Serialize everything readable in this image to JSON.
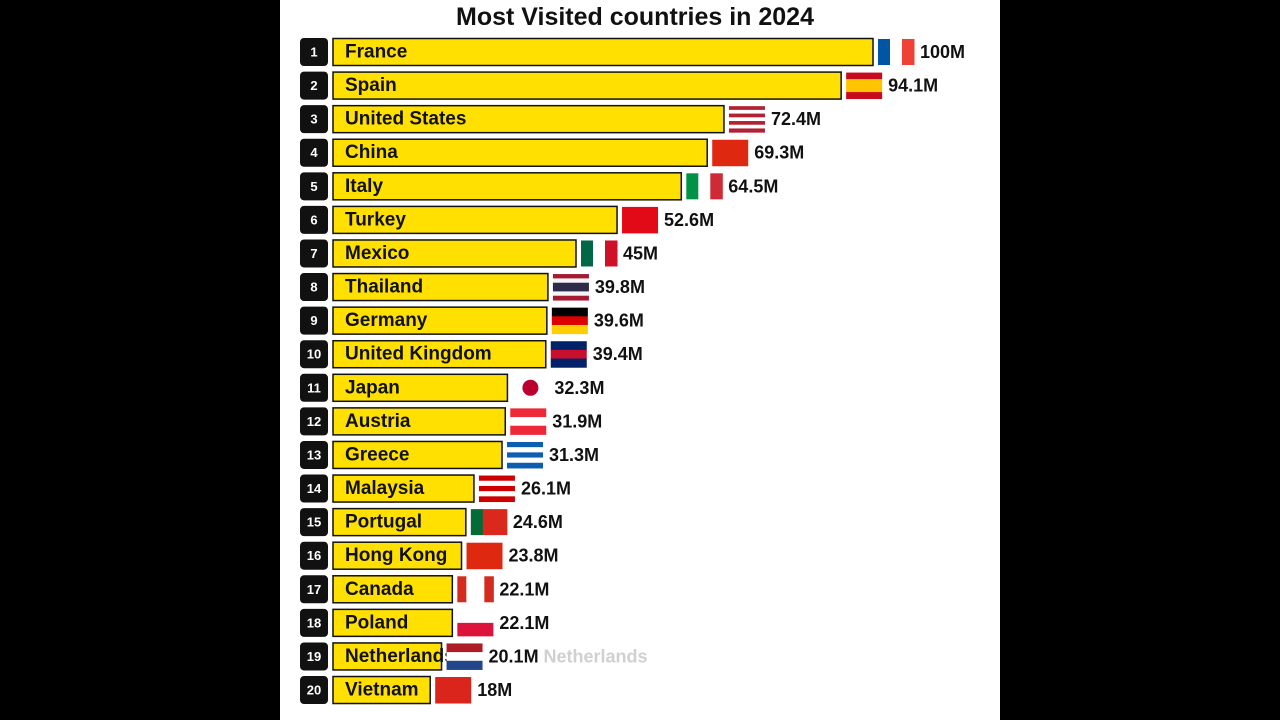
{
  "chart_data": {
    "type": "bar",
    "orientation": "horizontal",
    "title": "Most Visited countries in 2024",
    "annotation": "Netherlands",
    "ranks": [
      1,
      2,
      3,
      4,
      5,
      6,
      7,
      8,
      9,
      10,
      11,
      12,
      13,
      14,
      15,
      16,
      17,
      18,
      19,
      20
    ],
    "categories": [
      "France",
      "Spain",
      "United States",
      "China",
      "Italy",
      "Turkey",
      "Mexico",
      "Thailand",
      "Germany",
      "United Kingdom",
      "Japan",
      "Austria",
      "Greece",
      "Malaysia",
      "Portugal",
      "Hong Kong",
      "Canada",
      "Poland",
      "Netherlands",
      "Vietnam"
    ],
    "values": [
      100,
      94.1,
      72.4,
      69.3,
      64.5,
      52.6,
      45,
      39.8,
      39.6,
      39.4,
      32.3,
      31.9,
      31.3,
      26.1,
      24.6,
      23.8,
      22.1,
      22.1,
      20.1,
      18
    ],
    "value_labels": [
      "100M",
      "94.1M",
      "72.4M",
      "69.3M",
      "64.5M",
      "52.6M",
      "45M",
      "39.8M",
      "39.6M",
      "39.4M",
      "32.3M",
      "31.9M",
      "31.3M",
      "26.1M",
      "24.6M",
      "23.8M",
      "22.1M",
      "22.1M",
      "20.1M",
      "18M"
    ],
    "color": "#ffe000"
  }
}
